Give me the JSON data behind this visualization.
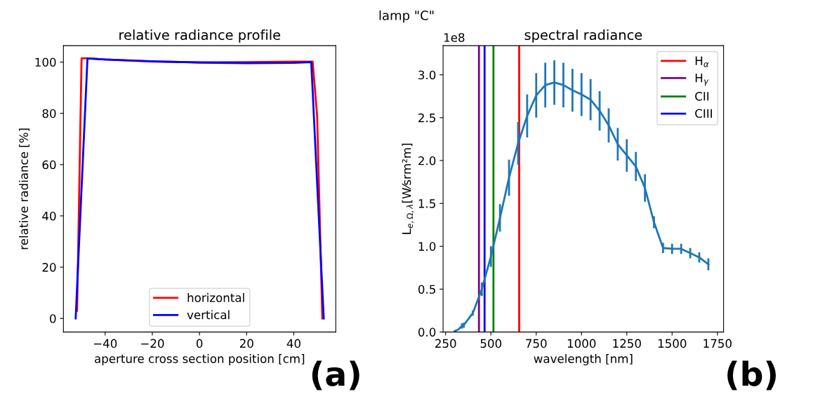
{
  "chart_data": [
    {
      "type": "line",
      "title": "relative radiance profile",
      "xlabel": "aperture cross section position [cm]",
      "ylabel": "relative radiance [%]",
      "xlim": [
        -57.7,
        57.8
      ],
      "ylim": [
        -5.3,
        106.4
      ],
      "xticks": [
        {
          "value": -40,
          "label": "−40"
        },
        {
          "value": -20,
          "label": "−20"
        },
        0,
        20,
        40
      ],
      "yticks": [
        0,
        20,
        40,
        60,
        80,
        100
      ],
      "legend": "bottom",
      "grid": false,
      "annotations": [
        "lamp \"C\"",
        "(a)"
      ],
      "series": [
        {
          "name": "horizontal",
          "color": "#ff0000",
          "x": [
            -51.9,
            -50,
            -47.6,
            -40,
            -20,
            0,
            20,
            40,
            48,
            49.9,
            52.1
          ],
          "values": [
            3,
            101.5,
            101.5,
            101,
            100.2,
            99.9,
            100,
            100.2,
            100.2,
            79,
            0
          ]
        },
        {
          "name": "vertical",
          "color": "#0000ff",
          "x": [
            -52.5,
            -47.5,
            -40,
            -20,
            0,
            20,
            40,
            47.4,
            52.7
          ],
          "values": [
            0,
            101.4,
            101,
            100.3,
            99.8,
            99.6,
            99.7,
            100,
            0
          ]
        }
      ]
    },
    {
      "type": "line",
      "title": "spectral radiance",
      "xlabel": "wavelength [nm]",
      "ylabel": "L$_{e,Ω,λ}$[W⁄srm²m]",
      "xlim": [
        236,
        1784
      ],
      "ylim": [
        0,
        3.34
      ],
      "xticks": [
        250,
        500,
        750,
        1000,
        1250,
        1500,
        1750
      ],
      "yticks": [
        {
          "value": 0,
          "label": "0.0"
        },
        0.5,
        {
          "value": 1,
          "label": "1.0"
        },
        1.5,
        {
          "value": 2,
          "label": "2.0"
        },
        2.5,
        {
          "value": 3,
          "label": "3.0"
        }
      ],
      "legend": "top right",
      "grid": false,
      "annotations": [
        "1e8",
        "(b)"
      ],
      "series": [
        {
          "name": "H$_{α}$",
          "color": "#ff0000",
          "x": [
            656,
            656
          ],
          "values": [
            0,
            3.34
          ]
        },
        {
          "name": "H$_{γ}$",
          "color": "#800080",
          "x": [
            434,
            434
          ],
          "values": [
            0,
            3.34
          ]
        },
        {
          "name": "CII",
          "color": "#008000",
          "x": [
            514,
            514
          ],
          "values": [
            0,
            3.34
          ]
        },
        {
          "name": "CIII",
          "color": "#0000ff",
          "x": [
            465,
            465
          ],
          "values": [
            0,
            3.34
          ]
        },
        {
          "color": "#1f77b4",
          "x": [
            300,
            320,
            340,
            350,
            400,
            450,
            500,
            550,
            600,
            650,
            700,
            750,
            800,
            850,
            900,
            950,
            1000,
            1050,
            1100,
            1150,
            1200,
            1250,
            1300,
            1350,
            1400,
            1450,
            1500,
            1550,
            1600,
            1650,
            1700
          ],
          "values": [
            0.01,
            0.03,
            0.07,
            0.08,
            0.22,
            0.5,
            0.88,
            1.33,
            1.8,
            2.2,
            2.52,
            2.76,
            2.88,
            2.91,
            2.88,
            2.82,
            2.77,
            2.71,
            2.58,
            2.41,
            2.19,
            2.06,
            1.93,
            1.68,
            1.28,
            0.98,
            0.97,
            0.97,
            0.92,
            0.87,
            0.79
          ],
          "errors": [
            null,
            null,
            0.03,
            0.03,
            0.03,
            0.08,
            0.12,
            0.16,
            0.21,
            0.25,
            0.25,
            0.26,
            0.26,
            0.26,
            0.26,
            0.25,
            0.25,
            0.24,
            0.23,
            0.2,
            0.19,
            0.19,
            0.17,
            0.16,
            0.07,
            0.06,
            0.06,
            0.06,
            0.06,
            0.06,
            0.07
          ]
        }
      ]
    }
  ]
}
